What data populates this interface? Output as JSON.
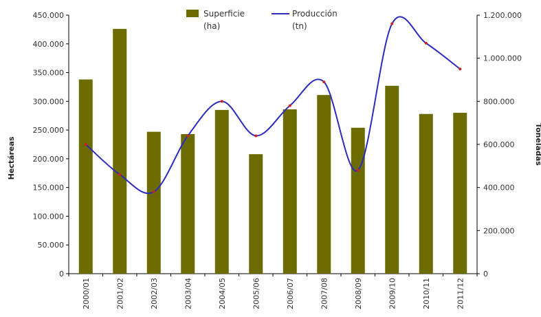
{
  "chart_data": {
    "type": "bar",
    "categories": [
      "2000/01",
      "2001/02",
      "2002/03",
      "2003/04",
      "2004/05",
      "2005/06",
      "2006/07",
      "2007/08",
      "2008/09",
      "2009/10",
      "2010/11",
      "2011/12"
    ],
    "series": [
      {
        "name": "Superficie (ha)",
        "type": "bar",
        "axis": "left",
        "color": "#6b6b00",
        "values": [
          338000,
          426000,
          247000,
          243000,
          285000,
          208000,
          286000,
          311000,
          254000,
          327000,
          278000,
          280000
        ]
      },
      {
        "name": "Producción (tn)",
        "type": "line",
        "axis": "right",
        "color": "#2b2bbf",
        "values": [
          600000,
          460000,
          380000,
          640000,
          800000,
          640000,
          780000,
          890000,
          480000,
          1160000,
          1070000,
          950000
        ]
      }
    ],
    "legend": [
      {
        "label_line1": "Superficie",
        "label_line2": "(ha)"
      },
      {
        "label_line1": "Producción",
        "label_line2": "(tn)"
      }
    ],
    "ylabel": "Hectáreas",
    "y2label": "Toneladas",
    "ylim": [
      0,
      450000
    ],
    "y2lim": [
      0,
      1200000
    ],
    "y_ticks": [
      "0",
      "50.000",
      "100.000",
      "150.000",
      "200.000",
      "250.000",
      "300.000",
      "350.000",
      "400.000",
      "450.000"
    ],
    "y2_ticks": [
      "0",
      "200.000",
      "400.000",
      "600.000",
      "800.000",
      "1.000.000",
      "1.200.000"
    ],
    "legend_position": "top-center",
    "grid": false
  }
}
